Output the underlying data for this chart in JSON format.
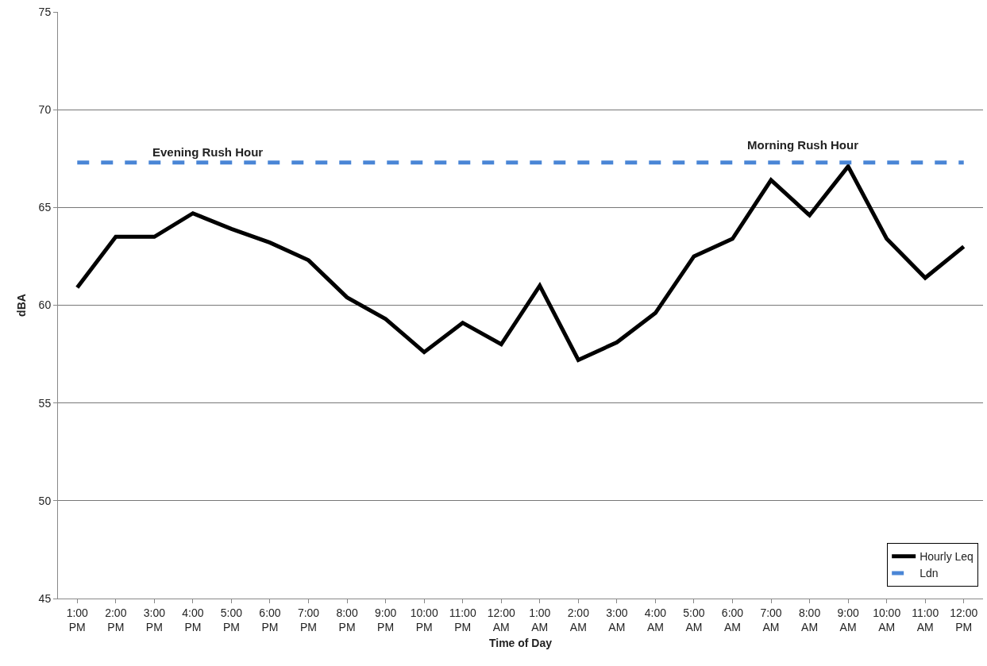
{
  "chart_data": {
    "type": "line",
    "xlabel": "Time of Day",
    "ylabel": "dBA",
    "categories": [
      "1:00 PM",
      "2:00 PM",
      "3:00 PM",
      "4:00 PM",
      "5:00 PM",
      "6:00 PM",
      "7:00 PM",
      "8:00 PM",
      "9:00 PM",
      "10:00 PM",
      "11:00 PM",
      "12:00 AM",
      "1:00 AM",
      "2:00 AM",
      "3:00 AM",
      "4:00 AM",
      "5:00 AM",
      "6:00 AM",
      "7:00 AM",
      "8:00 AM",
      "9:00 AM",
      "10:00 AM",
      "11:00 AM",
      "12:00 PM"
    ],
    "series": [
      {
        "name": "Hourly Leq",
        "color": "#000000",
        "line_style": "solid",
        "values": [
          60.9,
          63.5,
          63.5,
          64.7,
          63.9,
          63.2,
          62.3,
          60.4,
          59.3,
          57.6,
          59.1,
          58.0,
          61.0,
          57.2,
          58.1,
          59.6,
          62.5,
          63.4,
          66.4,
          64.6,
          67.1,
          63.4,
          61.4,
          63.0
        ]
      },
      {
        "name": "Ldn",
        "color": "#4a86d6",
        "line_style": "dashed",
        "values": [
          67.3,
          67.3,
          67.3,
          67.3,
          67.3,
          67.3,
          67.3,
          67.3,
          67.3,
          67.3,
          67.3,
          67.3,
          67.3,
          67.3,
          67.3,
          67.3,
          67.3,
          67.3,
          67.3,
          67.3,
          67.3,
          67.3,
          67.3,
          67.3
        ]
      }
    ],
    "annotations": [
      "Evening Rush Hour",
      "Morning Rush Hour"
    ],
    "ylim": [
      45,
      75
    ],
    "yticks": [
      45,
      50,
      55,
      60,
      65,
      70,
      75
    ],
    "grid": "y",
    "legend": "bottom right",
    "marker": "none"
  }
}
